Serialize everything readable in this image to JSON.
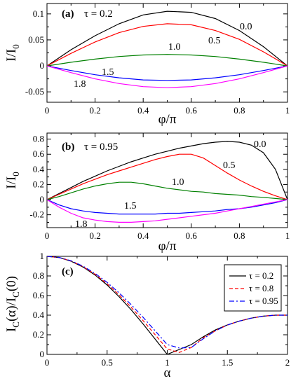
{
  "chart_data": [
    {
      "type": "line",
      "panel_label": "(a)",
      "tau_text": "τ = 0.2",
      "xlabel": "φ/π",
      "ylabel_main": "I/I",
      "ylabel_sub": "0",
      "xlim": [
        0,
        1
      ],
      "ylim": [
        -0.07,
        0.12
      ],
      "xticks": [
        0,
        0.2,
        0.4,
        0.6,
        0.8,
        1
      ],
      "xtick_labels": [
        "0",
        "0.2",
        "0.4",
        "0.6",
        "0.8",
        "1"
      ],
      "yticks": [
        -0.05,
        0,
        0.05,
        0.1
      ],
      "ytick_labels": [
        "-0.05",
        "0",
        "0.05",
        "0.1"
      ],
      "x": [
        0,
        0.1,
        0.2,
        0.3,
        0.4,
        0.5,
        0.6,
        0.7,
        0.8,
        0.9,
        1.0
      ],
      "series": [
        {
          "name": "0.0",
          "color": "#000000",
          "values": [
            0,
            0.031,
            0.058,
            0.081,
            0.098,
            0.105,
            0.103,
            0.091,
            0.068,
            0.037,
            0
          ]
        },
        {
          "name": "0.5",
          "color": "#ff0000",
          "values": [
            0,
            0.024,
            0.046,
            0.064,
            0.076,
            0.081,
            0.079,
            0.068,
            0.051,
            0.027,
            0
          ]
        },
        {
          "name": "1.0",
          "color": "#008000",
          "values": [
            0,
            0.007,
            0.013,
            0.018,
            0.021,
            0.022,
            0.021,
            0.018,
            0.013,
            0.007,
            0
          ]
        },
        {
          "name": "1.5",
          "color": "#0000ff",
          "values": [
            0,
            -0.009,
            -0.017,
            -0.023,
            -0.027,
            -0.028,
            -0.027,
            -0.023,
            -0.017,
            -0.009,
            0
          ]
        },
        {
          "name": "1.8",
          "color": "#ff00ff",
          "values": [
            0,
            -0.013,
            -0.025,
            -0.034,
            -0.04,
            -0.042,
            -0.04,
            -0.034,
            -0.025,
            -0.013,
            0
          ]
        }
      ]
    },
    {
      "type": "line",
      "panel_label": "(b)",
      "tau_text": "τ = 0.95",
      "xlabel": "φ/π",
      "ylabel_main": "I/I",
      "ylabel_sub": "0",
      "xlim": [
        0,
        1
      ],
      "ylim": [
        -0.37,
        0.88
      ],
      "xticks": [
        0,
        0.2,
        0.4,
        0.6,
        0.8,
        1
      ],
      "xtick_labels": [
        "0",
        "0.2",
        "0.4",
        "0.6",
        "0.8",
        "1"
      ],
      "yticks": [
        -0.2,
        0,
        0.2,
        0.4,
        0.6,
        0.8
      ],
      "ytick_labels": [
        "-0.2",
        "0",
        "0.2",
        "0.4",
        "0.6",
        "0.8"
      ],
      "x": [
        0,
        0.05,
        0.1,
        0.15,
        0.2,
        0.25,
        0.3,
        0.35,
        0.4,
        0.45,
        0.5,
        0.55,
        0.6,
        0.65,
        0.7,
        0.75,
        0.8,
        0.85,
        0.9,
        0.95,
        1.0
      ],
      "series": [
        {
          "name": "0.0",
          "color": "#000000",
          "values": [
            0,
            0.08,
            0.16,
            0.24,
            0.31,
            0.38,
            0.44,
            0.5,
            0.55,
            0.6,
            0.64,
            0.68,
            0.71,
            0.74,
            0.76,
            0.77,
            0.76,
            0.72,
            0.62,
            0.4,
            0
          ]
        },
        {
          "name": "0.5",
          "color": "#ff0000",
          "values": [
            0,
            0.07,
            0.14,
            0.21,
            0.27,
            0.33,
            0.38,
            0.43,
            0.48,
            0.53,
            0.57,
            0.6,
            0.6,
            0.55,
            0.45,
            0.35,
            0.26,
            0.18,
            0.11,
            0.05,
            0
          ]
        },
        {
          "name": "1.0",
          "color": "#008000",
          "values": [
            0,
            0.04,
            0.09,
            0.14,
            0.18,
            0.21,
            0.23,
            0.23,
            0.21,
            0.18,
            0.15,
            0.13,
            0.11,
            0.1,
            0.08,
            0.07,
            0.06,
            0.04,
            0.03,
            0.015,
            0
          ]
        },
        {
          "name": "1.5",
          "color": "#0000ff",
          "values": [
            0,
            -0.07,
            -0.12,
            -0.15,
            -0.17,
            -0.18,
            -0.19,
            -0.19,
            -0.19,
            -0.19,
            -0.18,
            -0.18,
            -0.17,
            -0.16,
            -0.15,
            -0.13,
            -0.12,
            -0.1,
            -0.07,
            -0.04,
            0
          ]
        },
        {
          "name": "1.8",
          "color": "#ff00ff",
          "values": [
            0,
            -0.1,
            -0.18,
            -0.24,
            -0.27,
            -0.29,
            -0.3,
            -0.3,
            -0.29,
            -0.28,
            -0.26,
            -0.24,
            -0.22,
            -0.2,
            -0.18,
            -0.15,
            -0.12,
            -0.09,
            -0.06,
            -0.03,
            0
          ]
        }
      ]
    },
    {
      "type": "line",
      "panel_label": "(c)",
      "xlabel": "α",
      "ylabel_text": "I",
      "ylabel_sub1": "C",
      "ylabel_mid": "(α)/I",
      "ylabel_sub2": "C",
      "ylabel_end": "(0)",
      "xlim": [
        0,
        2
      ],
      "ylim": [
        0,
        1
      ],
      "xticks": [
        0,
        0.5,
        1,
        1.5,
        2
      ],
      "xtick_labels": [
        "0",
        "0.5",
        "1",
        "1.5",
        "2"
      ],
      "yticks": [
        0,
        0.2,
        0.4,
        0.6,
        0.8,
        1
      ],
      "ytick_labels": [
        "0",
        "0.2",
        "0.4",
        "0.6",
        "0.8",
        "1"
      ],
      "legend_position": "top-right",
      "series": [
        {
          "name": "τ = 0.2",
          "color": "#000000",
          "dash": "",
          "x": [
            0,
            0.1,
            0.2,
            0.3,
            0.4,
            0.5,
            0.6,
            0.7,
            0.8,
            0.9,
            1.0,
            1.1,
            1.2,
            1.3,
            1.4,
            1.5,
            1.6,
            1.7,
            1.8,
            1.9,
            2.0
          ],
          "values": [
            1.0,
            0.988,
            0.951,
            0.891,
            0.809,
            0.707,
            0.588,
            0.454,
            0.309,
            0.156,
            0.0,
            0.05,
            0.1,
            0.18,
            0.25,
            0.3,
            0.34,
            0.37,
            0.39,
            0.4,
            0.4
          ]
        },
        {
          "name": "τ = 0.8",
          "color": "#ff0000",
          "dash": "5,3",
          "x": [
            0,
            0.1,
            0.2,
            0.3,
            0.4,
            0.5,
            0.6,
            0.7,
            0.8,
            0.9,
            1.0,
            1.1,
            1.2,
            1.3,
            1.4,
            1.5,
            1.6,
            1.7,
            1.8,
            1.9,
            2.0
          ],
          "values": [
            1.0,
            0.988,
            0.953,
            0.895,
            0.817,
            0.72,
            0.607,
            0.48,
            0.343,
            0.2,
            0.055,
            0.02,
            0.07,
            0.17,
            0.24,
            0.3,
            0.34,
            0.37,
            0.39,
            0.4,
            0.4
          ]
        },
        {
          "name": "τ = 0.95",
          "color": "#0000ff",
          "dash": "7,3,2,3",
          "x": [
            0,
            0.1,
            0.2,
            0.3,
            0.4,
            0.5,
            0.6,
            0.7,
            0.8,
            0.9,
            1.0,
            1.1,
            1.2,
            1.3,
            1.4,
            1.5,
            1.6,
            1.7,
            1.8,
            1.9,
            2.0
          ],
          "values": [
            1.0,
            0.989,
            0.955,
            0.9,
            0.826,
            0.734,
            0.627,
            0.507,
            0.377,
            0.24,
            0.1,
            0.065,
            0.07,
            0.16,
            0.24,
            0.3,
            0.34,
            0.37,
            0.39,
            0.4,
            0.4
          ]
        }
      ]
    }
  ]
}
